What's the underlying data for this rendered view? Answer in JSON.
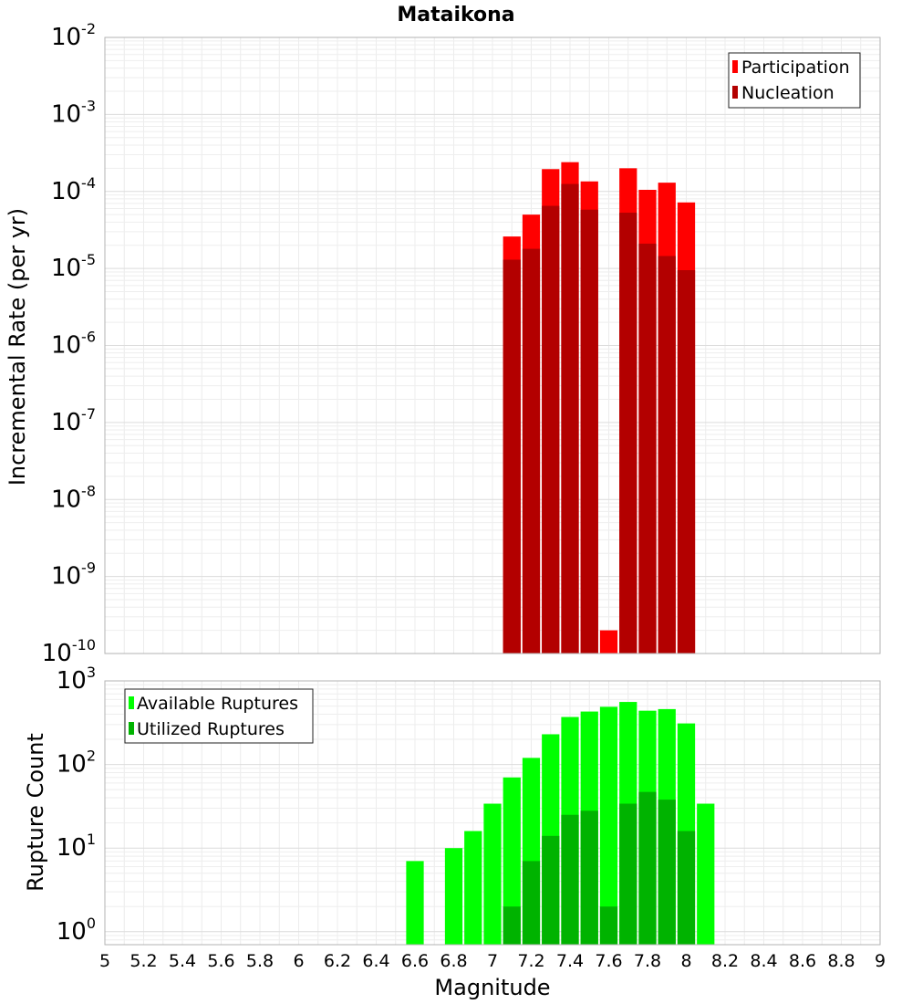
{
  "chart_data": [
    {
      "type": "bar",
      "title": "Mataikona",
      "xlabel": "",
      "ylabel": "Incremental Rate (per yr)",
      "yscale": "log",
      "xlim": [
        5,
        9
      ],
      "ylim": [
        1e-10,
        0.01
      ],
      "ytick_labels": [
        {
          "base": "10",
          "exp": "-10"
        },
        {
          "base": "10",
          "exp": "-9"
        },
        {
          "base": "10",
          "exp": "-8"
        },
        {
          "base": "10",
          "exp": "-7"
        },
        {
          "base": "10",
          "exp": "-6"
        },
        {
          "base": "10",
          "exp": "-5"
        },
        {
          "base": "10",
          "exp": "-4"
        },
        {
          "base": "10",
          "exp": "-3"
        },
        {
          "base": "10",
          "exp": "-2"
        }
      ],
      "grid": true,
      "legend_position": "top-right",
      "bar_width": 0.1,
      "series": [
        {
          "name": "Participation",
          "color": "#ff0000",
          "x": [
            7.1,
            7.2,
            7.3,
            7.4,
            7.5,
            7.6,
            7.7,
            7.8,
            7.9,
            8.0
          ],
          "values": [
            2.6e-05,
            5e-05,
            0.000195,
            0.00024,
            0.000135,
            2e-10,
            0.0002,
            0.000105,
            0.00013,
            7.2e-05
          ]
        },
        {
          "name": "Nucleation",
          "color": "#b30000",
          "x": [
            7.1,
            7.2,
            7.3,
            7.4,
            7.5,
            7.7,
            7.8,
            7.9,
            8.0
          ],
          "values": [
            1.3e-05,
            1.8e-05,
            6.5e-05,
            0.000125,
            5.8e-05,
            5.3e-05,
            2.1e-05,
            1.45e-05,
            9.5e-06
          ]
        }
      ]
    },
    {
      "type": "bar",
      "title": "",
      "xlabel": "Magnitude",
      "ylabel": "Rupture Count",
      "yscale": "log",
      "xlim": [
        5,
        9
      ],
      "ylim": [
        0.7,
        1000
      ],
      "xtick_labels": [
        "5",
        "5.2",
        "5.4",
        "5.6",
        "5.8",
        "6",
        "6.2",
        "6.4",
        "6.6",
        "6.8",
        "7",
        "7.2",
        "7.4",
        "7.6",
        "7.8",
        "8",
        "8.2",
        "8.4",
        "8.6",
        "8.8",
        "9"
      ],
      "ytick_labels": [
        {
          "base": "10",
          "exp": "0"
        },
        {
          "base": "10",
          "exp": "1"
        },
        {
          "base": "10",
          "exp": "2"
        },
        {
          "base": "10",
          "exp": "3"
        }
      ],
      "grid": true,
      "legend_position": "top-left",
      "bar_width": 0.1,
      "series": [
        {
          "name": "Available Ruptures",
          "color": "#00ff00",
          "x": [
            6.6,
            6.8,
            6.9,
            7.0,
            7.1,
            7.2,
            7.3,
            7.4,
            7.5,
            7.6,
            7.7,
            7.8,
            7.9,
            8.0,
            8.1
          ],
          "values": [
            7,
            10,
            16,
            34,
            70,
            120,
            230,
            370,
            430,
            490,
            560,
            440,
            460,
            310,
            34
          ]
        },
        {
          "name": "Utilized Ruptures",
          "color": "#00b300",
          "x": [
            7.1,
            7.2,
            7.3,
            7.4,
            7.5,
            7.6,
            7.7,
            7.8,
            7.9,
            8.0
          ],
          "values": [
            2,
            7,
            14,
            25,
            28,
            2,
            34,
            47,
            38,
            16
          ]
        }
      ]
    }
  ]
}
